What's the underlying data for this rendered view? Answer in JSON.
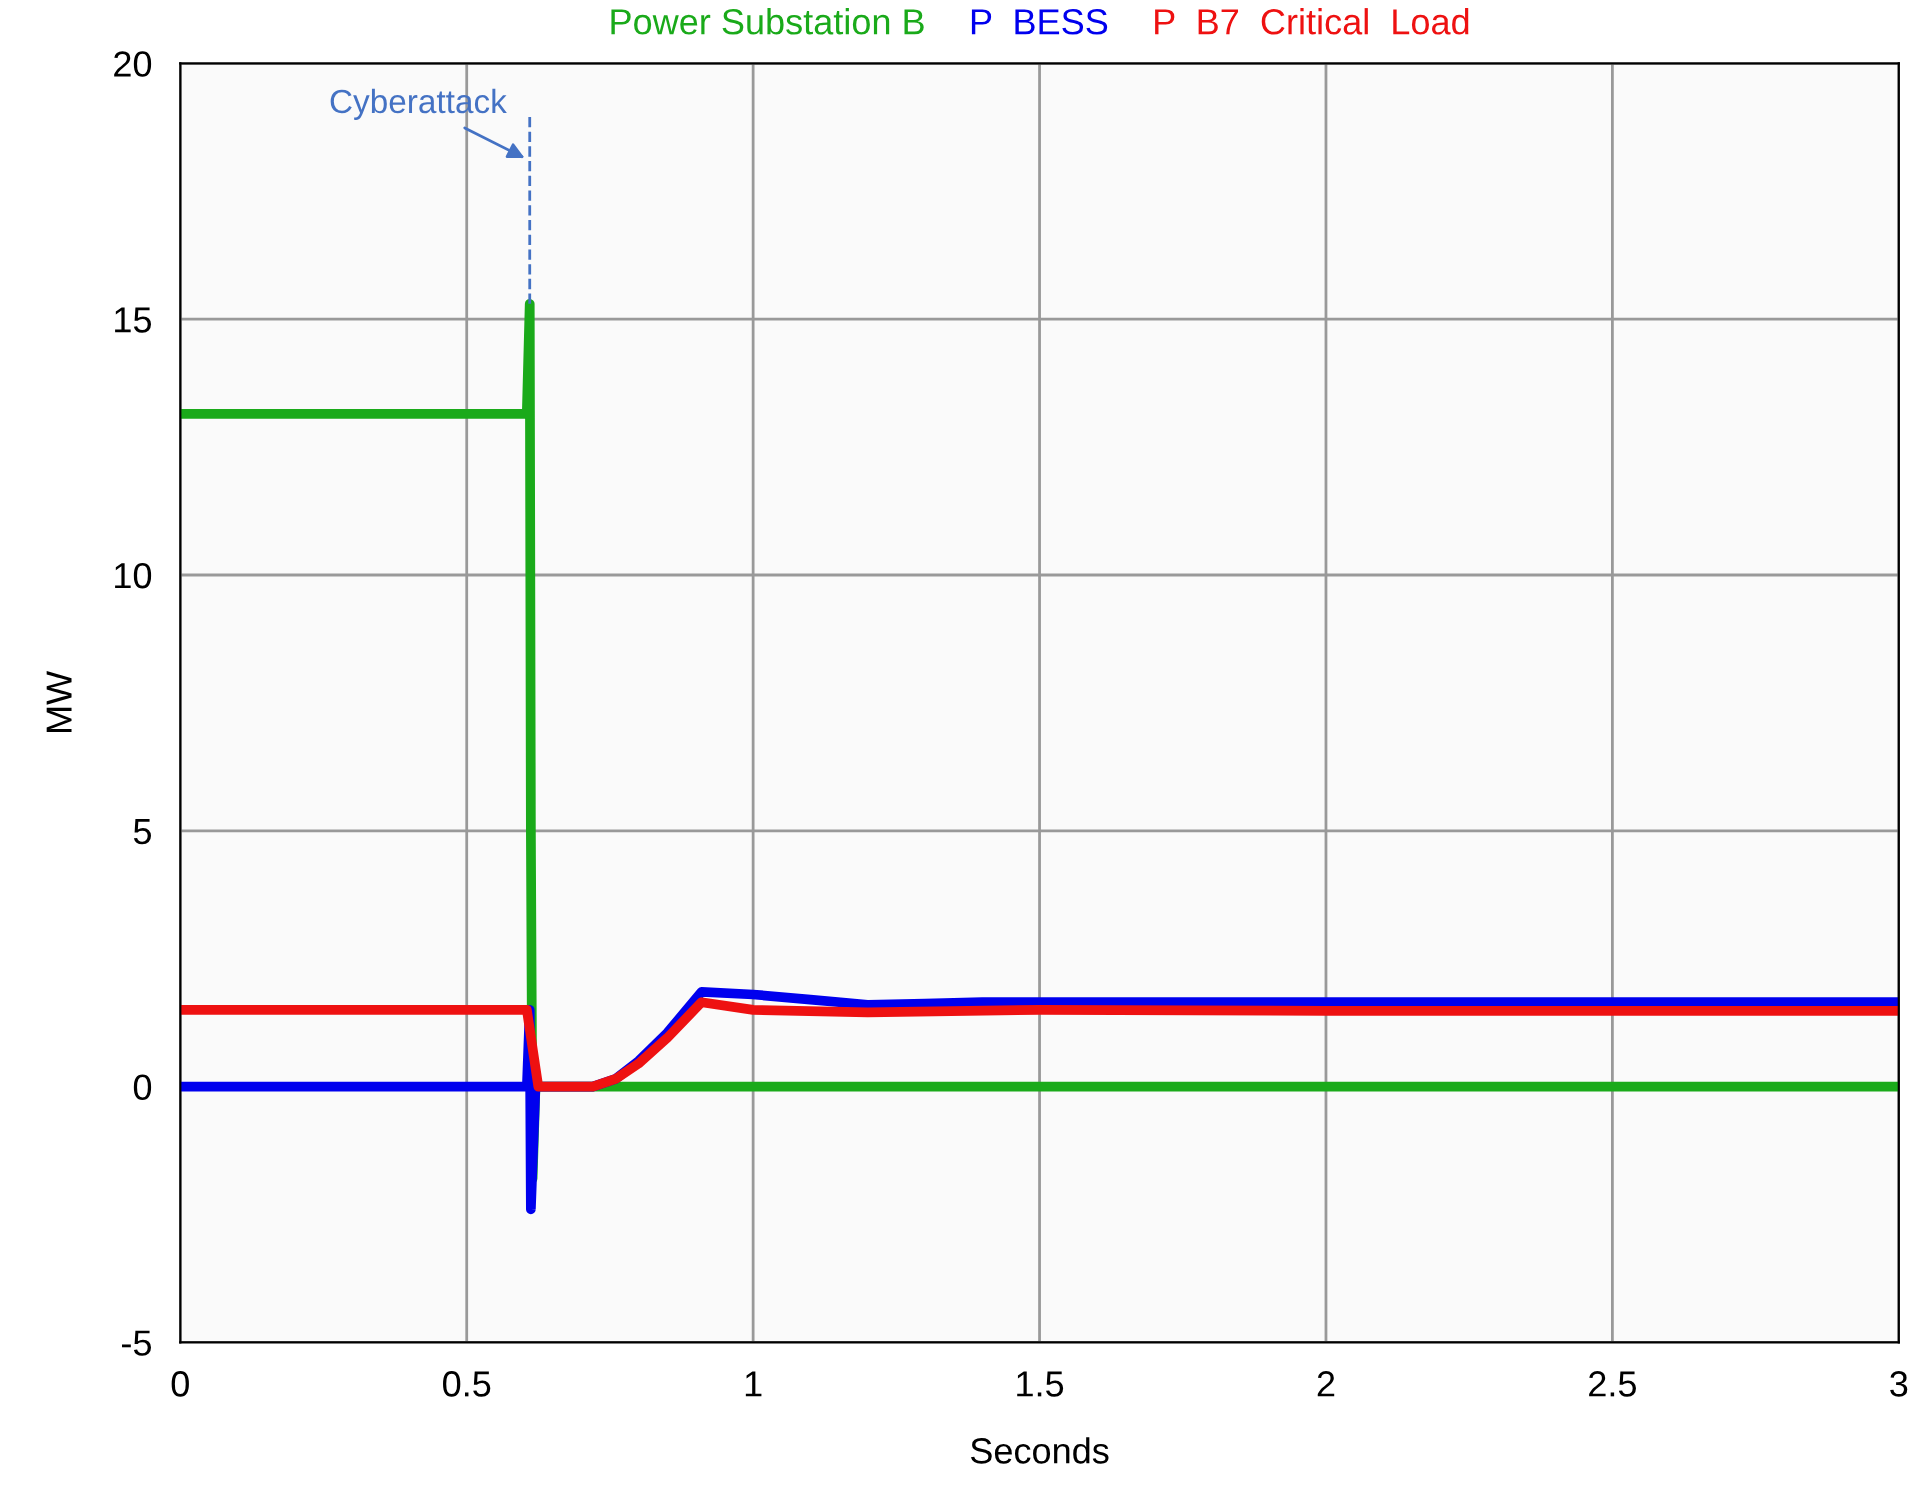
{
  "chart_data": {
    "type": "line",
    "xlabel": "Seconds",
    "ylabel": "MW",
    "xlim": [
      0,
      3
    ],
    "ylim": [
      -5,
      20
    ],
    "xticks": [
      0,
      0.5,
      1,
      1.5,
      2,
      2.5,
      3
    ],
    "yticks": [
      -5,
      0,
      5,
      10,
      15,
      20
    ],
    "grid": true,
    "legend": "top",
    "annotations": [
      {
        "text": "Cyberattack",
        "x": 0.61,
        "y": 15.3
      }
    ],
    "series": [
      {
        "name": "Power Substation B",
        "color": "#1aaa1a",
        "x": [
          0,
          0.6,
          0.605,
          0.61,
          0.612,
          0.615,
          0.62,
          1,
          1.5,
          2,
          3
        ],
        "values": [
          13.15,
          13.15,
          13.2,
          15.3,
          5,
          -1.8,
          0,
          0,
          0,
          0,
          0
        ]
      },
      {
        "name": "P  BESS",
        "color": "#0000ee",
        "x": [
          0,
          0.605,
          0.61,
          0.612,
          0.62,
          0.72,
          0.76,
          0.8,
          0.85,
          0.91,
          1.0,
          1.1,
          1.2,
          1.3,
          1.4,
          2,
          3
        ],
        "values": [
          0,
          0,
          1.5,
          -2.4,
          0,
          0,
          0.15,
          0.5,
          1.05,
          1.85,
          1.8,
          1.7,
          1.6,
          1.62,
          1.65,
          1.65,
          1.65
        ]
      },
      {
        "name": "P  B7  Critical  Load",
        "color": "#ee1111",
        "x": [
          0,
          0.605,
          0.625,
          0.72,
          0.76,
          0.8,
          0.85,
          0.91,
          1.0,
          1.2,
          1.5,
          2,
          3
        ],
        "values": [
          1.5,
          1.5,
          0,
          0,
          0.15,
          0.45,
          0.95,
          1.65,
          1.5,
          1.45,
          1.5,
          1.48,
          1.48
        ]
      }
    ]
  }
}
